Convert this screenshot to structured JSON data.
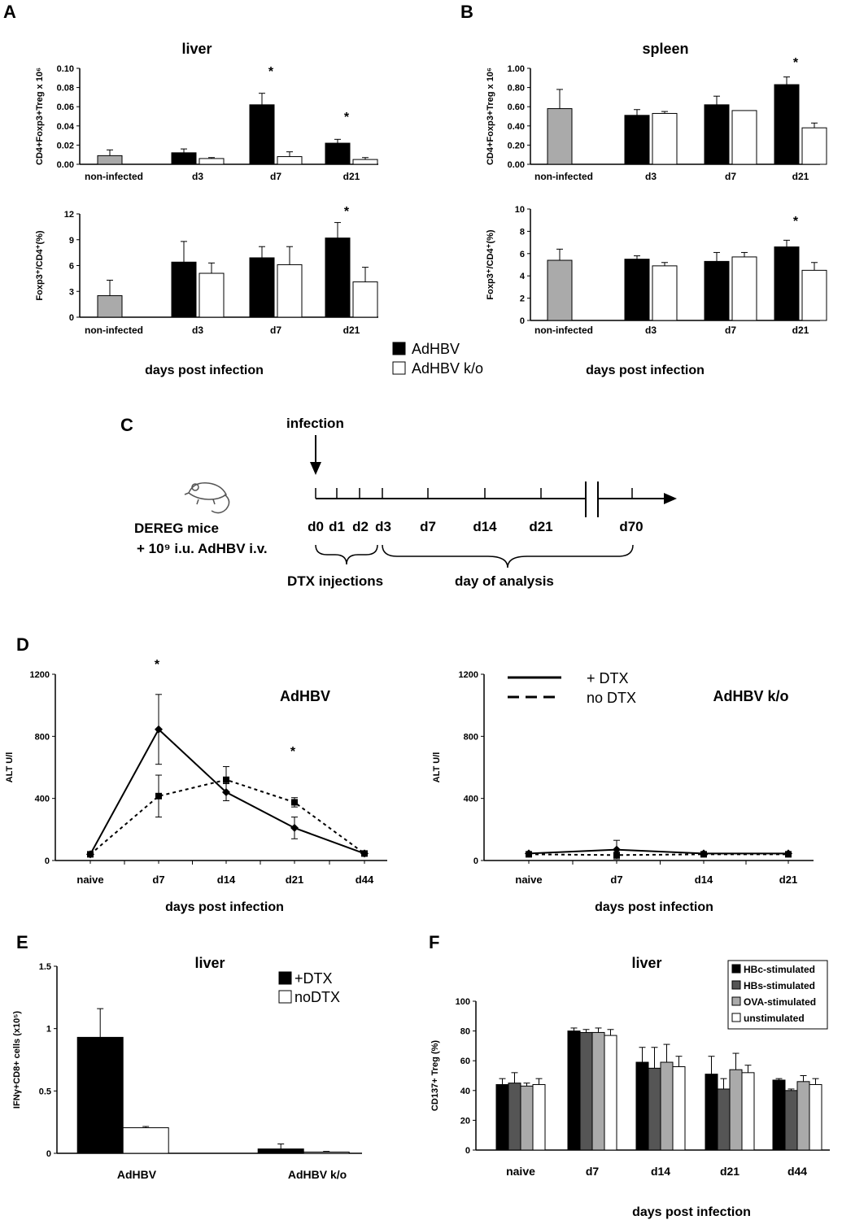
{
  "panels": {
    "A": "A",
    "B": "B",
    "C": "C",
    "D": "D",
    "E": "E",
    "F": "F"
  },
  "colors": {
    "adhbv": "#000000",
    "ko": "#ffffff",
    "noninfected": "#aaaaaa",
    "hbc": "#000000",
    "hbs": "#555555",
    "ova": "#aaaaaa",
    "unstim": "#ffffff"
  },
  "legend_AB": {
    "adhbv": "AdHBV",
    "ko": "AdHBV k/o"
  },
  "chart_data": [
    {
      "id": "A1",
      "type": "bar",
      "title": "liver",
      "ylabel": "CD4+Foxp3+Treg x 10⁶",
      "xlabel": "",
      "ylim": [
        0,
        0.1
      ],
      "yticks": [
        "0.00",
        "0.02",
        "0.04",
        "0.06",
        "0.08",
        "0.10"
      ],
      "categories": [
        "non-infected",
        "d3",
        "d7",
        "d21"
      ],
      "series": [
        {
          "key": "ctrl",
          "values": [
            0.009,
            null,
            null,
            null
          ],
          "errors": [
            0.006,
            null,
            null,
            null
          ]
        },
        {
          "key": "adhbv",
          "values": [
            null,
            0.012,
            0.062,
            0.022
          ],
          "errors": [
            null,
            0.004,
            0.012,
            0.004
          ]
        },
        {
          "key": "ko",
          "values": [
            null,
            0.006,
            0.008,
            0.005
          ],
          "errors": [
            null,
            0.001,
            0.005,
            0.002
          ]
        }
      ],
      "significance": [
        "",
        "",
        "*",
        "*"
      ]
    },
    {
      "id": "A2",
      "type": "bar",
      "title": "",
      "ylabel": "Foxp3⁺/CD4⁺(%)",
      "xlabel": "days post infection",
      "ylim": [
        0,
        12
      ],
      "yticks": [
        "0",
        "3",
        "6",
        "9",
        "12"
      ],
      "categories": [
        "non-infected",
        "d3",
        "d7",
        "d21"
      ],
      "series": [
        {
          "key": "ctrl",
          "values": [
            2.5,
            null,
            null,
            null
          ],
          "errors": [
            1.8,
            null,
            null,
            null
          ]
        },
        {
          "key": "adhbv",
          "values": [
            null,
            6.4,
            6.9,
            9.2
          ],
          "errors": [
            null,
            2.4,
            1.3,
            1.8
          ]
        },
        {
          "key": "ko",
          "values": [
            null,
            5.1,
            6.1,
            4.1
          ],
          "errors": [
            null,
            1.2,
            2.1,
            1.7
          ]
        }
      ],
      "significance": [
        "",
        "",
        "",
        "*"
      ]
    },
    {
      "id": "B1",
      "type": "bar",
      "title": "spleen",
      "ylabel": "CD4+Foxp3+Treg x 10⁶",
      "xlabel": "",
      "ylim": [
        0,
        1
      ],
      "yticks": [
        "0.00",
        "0.20",
        "0.40",
        "0.60",
        "0.80",
        "1.00"
      ],
      "categories": [
        "non-infected",
        "d3",
        "d7",
        "d21"
      ],
      "series": [
        {
          "key": "ctrl",
          "values": [
            0.58,
            null,
            null,
            null
          ],
          "errors": [
            0.2,
            null,
            null,
            null
          ]
        },
        {
          "key": "adhbv",
          "values": [
            null,
            0.51,
            0.62,
            0.83
          ],
          "errors": [
            null,
            0.06,
            0.09,
            0.08
          ]
        },
        {
          "key": "ko",
          "values": [
            null,
            0.53,
            0.56,
            0.38
          ],
          "errors": [
            null,
            0.02,
            0.0,
            0.05
          ]
        }
      ],
      "significance": [
        "",
        "",
        "",
        "*"
      ]
    },
    {
      "id": "B2",
      "type": "bar",
      "title": "",
      "ylabel": "Foxp3⁺/CD4⁺(%)",
      "xlabel": "days post infection",
      "ylim": [
        0,
        10
      ],
      "yticks": [
        "0",
        "2",
        "4",
        "6",
        "8",
        "10"
      ],
      "categories": [
        "non-infected",
        "d3",
        "d7",
        "d21"
      ],
      "series": [
        {
          "key": "ctrl",
          "values": [
            5.4,
            null,
            null,
            null
          ],
          "errors": [
            1.0,
            null,
            null,
            null
          ]
        },
        {
          "key": "adhbv",
          "values": [
            null,
            5.5,
            5.3,
            6.6
          ],
          "errors": [
            null,
            0.3,
            0.8,
            0.6
          ]
        },
        {
          "key": "ko",
          "values": [
            null,
            4.9,
            5.7,
            4.5
          ],
          "errors": [
            null,
            0.3,
            0.4,
            0.7
          ]
        }
      ],
      "significance": [
        "",
        "",
        "",
        "*"
      ]
    },
    {
      "id": "D1",
      "type": "line",
      "title": "AdHBV",
      "ylabel": "ALT U/l",
      "xlabel": "days post infection",
      "ylim": [
        0,
        1200
      ],
      "yticks": [
        "0",
        "400",
        "800",
        "1200"
      ],
      "categories": [
        "naive",
        "d7",
        "d14",
        "d21",
        "d44"
      ],
      "series": [
        {
          "name": "+ DTX",
          "style": "solid",
          "marker": "diamond",
          "values": [
            40,
            845,
            440,
            210,
            45
          ],
          "errors": [
            0,
            225,
            55,
            70,
            0
          ]
        },
        {
          "name": "no DTX",
          "style": "dashed",
          "marker": "square",
          "values": [
            40,
            415,
            520,
            375,
            45
          ],
          "errors": [
            0,
            135,
            85,
            30,
            0
          ]
        }
      ],
      "significance": [
        "",
        "*",
        "",
        "*",
        ""
      ]
    },
    {
      "id": "D2",
      "type": "line",
      "title": "AdHBV k/o",
      "ylabel": "ALT U/l",
      "xlabel": "days post infection",
      "ylim": [
        0,
        1200
      ],
      "yticks": [
        "0",
        "400",
        "800",
        "1200"
      ],
      "categories": [
        "naive",
        "d7",
        "d14",
        "d21"
      ],
      "series": [
        {
          "name": "+ DTX",
          "style": "solid",
          "marker": "diamond",
          "values": [
            45,
            70,
            45,
            45
          ],
          "errors": [
            10,
            60,
            10,
            10
          ]
        },
        {
          "name": "no DTX",
          "style": "dashed",
          "marker": "square",
          "values": [
            40,
            35,
            40,
            40
          ],
          "errors": [
            0,
            10,
            5,
            5
          ]
        }
      ],
      "legend": [
        "+ DTX",
        "no DTX"
      ]
    },
    {
      "id": "E",
      "type": "bar",
      "title": "liver",
      "ylabel": "IFNγ+CD8+ cells (x10⁵)",
      "xlabel": "",
      "ylim": [
        0,
        1.5
      ],
      "yticks": [
        "0",
        "0.5",
        "1",
        "1.5"
      ],
      "categories": [
        "AdHBV",
        "AdHBV k/o"
      ],
      "series": [
        {
          "name": "+DTX",
          "values": [
            0.93,
            0.035
          ],
          "errors": [
            0.23,
            0.04
          ]
        },
        {
          "name": "noDTX",
          "values": [
            0.205,
            0.01
          ],
          "errors": [
            0.01,
            0.005
          ]
        }
      ]
    },
    {
      "id": "F",
      "type": "bar",
      "title": "liver",
      "ylabel": "CD137+ Treg (%)",
      "xlabel": "days post infection",
      "ylim": [
        0,
        100
      ],
      "yticks": [
        "0",
        "20",
        "40",
        "60",
        "80",
        "100"
      ],
      "categories": [
        "naive",
        "d7",
        "d14",
        "d21",
        "d44"
      ],
      "series": [
        {
          "name": "HBc-stimulated",
          "values": [
            44,
            80,
            59,
            51,
            47
          ],
          "errors": [
            4,
            2,
            10,
            12,
            1
          ]
        },
        {
          "name": "HBs-stimulated",
          "values": [
            45,
            79,
            55,
            41,
            40
          ],
          "errors": [
            7,
            2,
            14,
            7,
            1
          ]
        },
        {
          "name": "OVA-stimulated",
          "values": [
            43,
            79,
            59,
            54,
            46
          ],
          "errors": [
            2,
            3,
            12,
            11,
            4
          ]
        },
        {
          "name": "unstimulated",
          "values": [
            44,
            77,
            56,
            52,
            44
          ],
          "errors": [
            4,
            4,
            7,
            5,
            4
          ]
        }
      ]
    }
  ],
  "timeline": {
    "infection": "infection",
    "mouse_line1": "DEREG mice",
    "mouse_line2": "+ 10⁹ i.u. AdHBV i.v.",
    "days": [
      "d0",
      "d1",
      "d2",
      "d3",
      "d7",
      "d14",
      "d21",
      "d70"
    ],
    "dtx": "DTX injections",
    "analysis": "day of analysis"
  }
}
